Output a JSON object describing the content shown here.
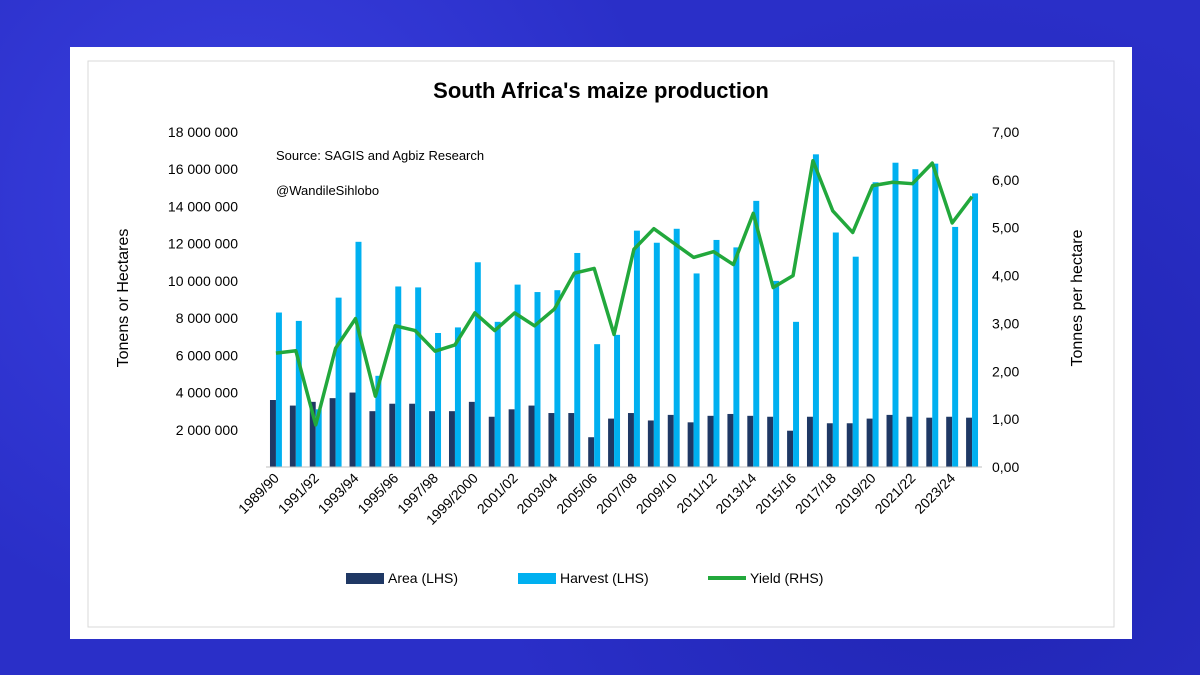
{
  "chart_data": {
    "type": "bar",
    "title": "South Africa's maize production",
    "source_note": "Source: SAGIS and Agbiz Research",
    "handle_note": "@WandileSihlobo",
    "ylabel_left": "Tonens or Hectares",
    "ylabel_right": "Tonnes per hectare",
    "ylim_left": [
      0,
      18000000
    ],
    "ylim_right": [
      0,
      7
    ],
    "left_ticks": [
      "",
      "2 000 000",
      "4 000 000",
      "6 000 000",
      "8 000 000",
      "10 000 000",
      "12 000 000",
      "14 000 000",
      "16 000 000",
      "18 000 000"
    ],
    "right_ticks": [
      "0,00",
      "1,00",
      "2,00",
      "3,00",
      "4,00",
      "5,00",
      "6,00",
      "7,00"
    ],
    "categories": [
      "1989/90",
      "1990/91",
      "1991/92",
      "1992/93",
      "1993/94",
      "1994/95",
      "1995/96",
      "1996/97",
      "1997/98",
      "1998/99",
      "1999/2000",
      "2000/01",
      "2001/02",
      "2002/03",
      "2003/04",
      "2004/05",
      "2005/06",
      "2006/07",
      "2007/08",
      "2008/09",
      "2009/10",
      "2010/11",
      "2011/12",
      "2012/13",
      "2013/14",
      "2014/15",
      "2015/16",
      "2016/17",
      "2017/18",
      "2018/19",
      "2019/20",
      "2020/21",
      "2021/22",
      "2022/23",
      "2023/24",
      "2024/25"
    ],
    "shown_labels": [
      "1989/90",
      "1991/92",
      "1993/94",
      "1995/96",
      "1997/98",
      "1999/2000",
      "2001/02",
      "2003/04",
      "2005/06",
      "2007/08",
      "2009/10",
      "2011/12",
      "2013/14",
      "2015/16",
      "2017/18",
      "2019/20",
      "2021/22",
      "2023/24"
    ],
    "series": [
      {
        "name": "Area (LHS)",
        "type": "bar",
        "axis": "left",
        "color": "#1f3864",
        "values": [
          3600000,
          3300000,
          3500000,
          3700000,
          4000000,
          3000000,
          3400000,
          3400000,
          3000000,
          3000000,
          3500000,
          2700000,
          3100000,
          3300000,
          2900000,
          2900000,
          1600000,
          2600000,
          2900000,
          2500000,
          2800000,
          2400000,
          2750000,
          2850000,
          2750000,
          2700000,
          1950000,
          2700000,
          2350000,
          2350000,
          2600000,
          2800000,
          2700000,
          2650000,
          2700000,
          2650000
        ]
      },
      {
        "name": "Harvest (LHS)",
        "type": "bar",
        "axis": "left",
        "color": "#00b0f0",
        "values": [
          8300000,
          7850000,
          3100000,
          9100000,
          12100000,
          4900000,
          9700000,
          9650000,
          7200000,
          7500000,
          11000000,
          7800000,
          9800000,
          9400000,
          9500000,
          11500000,
          6600000,
          7100000,
          12700000,
          12050000,
          12800000,
          10400000,
          12200000,
          11800000,
          14300000,
          10000000,
          7800000,
          16800000,
          12600000,
          11300000,
          15300000,
          16350000,
          16000000,
          16300000,
          12900000,
          14700000
        ]
      },
      {
        "name": "Yield (RHS)",
        "type": "line",
        "axis": "right",
        "color": "#22a83c",
        "values": [
          2.38,
          2.43,
          0.88,
          2.48,
          3.1,
          1.48,
          2.95,
          2.85,
          2.42,
          2.55,
          3.22,
          2.85,
          3.22,
          2.95,
          3.3,
          4.05,
          4.15,
          2.77,
          4.55,
          4.98,
          4.68,
          4.38,
          4.5,
          4.23,
          5.3,
          3.75,
          4.0,
          6.4,
          5.35,
          4.9,
          5.88,
          5.95,
          5.92,
          6.35,
          5.1,
          5.65
        ]
      }
    ],
    "legend_position": "bottom",
    "grid": false
  }
}
